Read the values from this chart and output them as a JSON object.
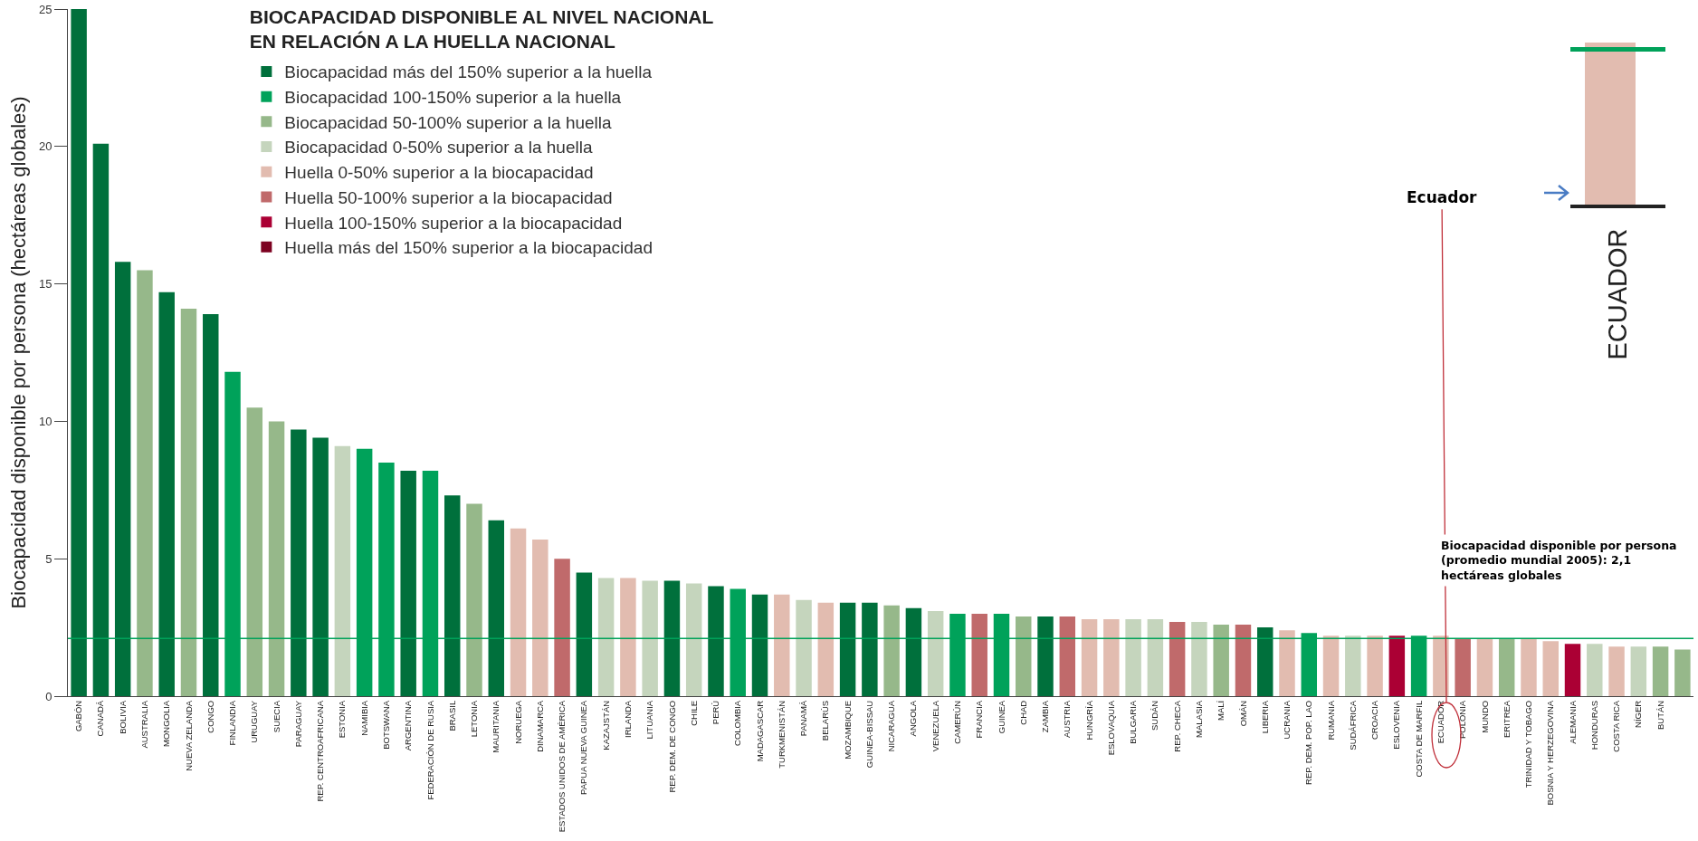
{
  "chart_data": {
    "type": "bar",
    "title": "BIOCAPACIDAD DISPONIBLE AL NIVEL NACIONAL EN RELACIÓN A LA HUELLA NACIONAL",
    "ylabel": "Biocapacidad disponible por persona (hectáreas globales)",
    "categories": [
      "GABÓN",
      "CANADÁ",
      "BOLIVIA",
      "AUSTRALIA",
      "MONGOLIA",
      "NUEVA ZELANDA",
      "CONGO",
      "FINLANDIA",
      "URUGUAY",
      "SUECIA",
      "PARAGUAY",
      "REP. CENTROAFRICANA",
      "ESTONIA",
      "NAMIBIA",
      "BOTSWANA",
      "ARGENTINA",
      "FEDERACIÓN DE RUSIA",
      "BRASIL",
      "LETONIA",
      "MAURITANIA",
      "NORUEGA",
      "DINAMARCA",
      "ESTADOS UNIDOS DE AMÉRICA",
      "PAPUA NUEVA GUINEA",
      "KAZAJSTÁN",
      "IRLANDA",
      "LITUANIA",
      "REP. DEM. DE CONGO",
      "CHILE",
      "PERÚ",
      "COLOMBIA",
      "MADAGASCAR",
      "TURKMENISTÁN",
      "PANAMÁ",
      "BELARÚS",
      "MOZAMBIQUE",
      "GUINEA-BISSAU",
      "NICARAGUA",
      "ANGOLA",
      "VENEZUELA",
      "CAMERÚN",
      "FRANCIA",
      "GUINEA",
      "CHAD",
      "ZAMBIA",
      "AUSTRIA",
      "HUNGRÍA",
      "ESLOVAQUIA",
      "BULGARIA",
      "SUDÁN",
      "REP. CHECA",
      "MALASIA",
      "MALÍ",
      "OMÁN",
      "LIBERIA",
      "UCRANIA",
      "REP. DEM. POP. LAO",
      "RUMANIA",
      "SUDÁFRICA",
      "CROACIA",
      "ESLOVENIA",
      "COSTA DE MARFIL",
      "ECUADOR",
      "POLONIA",
      "MUNDO",
      "ERITREA",
      "TRINIDAD Y TOBAGO",
      "BOSNIA Y HERZEGOVINA",
      "ALEMANIA",
      "HONDURAS",
      "COSTA RICA",
      "NÍGER",
      "BUTÁN",
      null
    ],
    "series": [
      {
        "name": "Biocapacidad más del 150% superior a la huella",
        "color": "#00703c",
        "values": [
          25.0,
          20.1,
          15.8,
          null,
          14.7,
          null,
          13.9,
          null,
          null,
          null,
          9.7,
          9.4,
          null,
          null,
          null,
          8.2,
          null,
          7.3,
          null,
          6.4,
          null,
          null,
          null,
          4.5,
          null,
          null,
          null,
          4.2,
          null,
          4.0,
          null,
          3.7,
          null,
          null,
          null,
          3.4,
          3.4,
          null,
          3.2,
          null,
          null,
          null,
          null,
          null,
          2.9,
          null,
          null,
          null,
          null,
          null,
          null,
          null,
          null,
          null,
          2.5,
          null,
          null,
          null,
          null,
          null,
          null,
          null,
          null,
          null,
          null,
          null,
          null,
          null,
          null,
          null,
          null,
          null,
          null,
          null
        ]
      },
      {
        "name": "Biocapacidad 100-150% superior a la huella",
        "color": "#00a25a",
        "values": [
          null,
          null,
          null,
          null,
          null,
          null,
          null,
          11.8,
          null,
          null,
          null,
          null,
          null,
          9.0,
          8.5,
          null,
          8.2,
          null,
          null,
          null,
          null,
          null,
          null,
          null,
          null,
          null,
          null,
          null,
          null,
          null,
          3.9,
          null,
          null,
          null,
          null,
          null,
          null,
          null,
          null,
          null,
          3.0,
          null,
          3.0,
          null,
          null,
          null,
          null,
          null,
          null,
          null,
          null,
          null,
          null,
          null,
          null,
          null,
          2.3,
          null,
          null,
          null,
          null,
          2.2,
          null,
          null,
          null,
          null,
          null,
          null,
          null,
          null,
          null,
          null,
          null,
          null
        ]
      },
      {
        "name": "Biocapacidad 50-100% superior a la huella",
        "color": "#96b88a",
        "values": [
          null,
          null,
          null,
          15.5,
          null,
          14.1,
          null,
          null,
          10.5,
          10.0,
          null,
          null,
          null,
          null,
          null,
          null,
          null,
          null,
          7.0,
          null,
          null,
          null,
          null,
          null,
          null,
          null,
          null,
          null,
          null,
          null,
          null,
          null,
          null,
          null,
          null,
          null,
          null,
          3.3,
          null,
          null,
          null,
          null,
          null,
          2.9,
          null,
          null,
          null,
          null,
          null,
          null,
          null,
          null,
          2.6,
          null,
          null,
          null,
          null,
          null,
          null,
          null,
          null,
          null,
          null,
          null,
          null,
          2.1,
          null,
          null,
          null,
          null,
          null,
          null,
          1.8,
          1.7
        ]
      },
      {
        "name": "Biocapacidad 0-50% superior a la huella",
        "color": "#c5d5bd",
        "values": [
          null,
          null,
          null,
          null,
          null,
          null,
          null,
          null,
          null,
          null,
          null,
          null,
          9.1,
          null,
          null,
          null,
          null,
          null,
          null,
          null,
          null,
          null,
          null,
          null,
          4.3,
          null,
          4.2,
          null,
          4.1,
          null,
          null,
          null,
          null,
          3.5,
          null,
          null,
          null,
          null,
          null,
          3.1,
          null,
          null,
          null,
          null,
          null,
          null,
          null,
          null,
          2.8,
          2.8,
          null,
          2.7,
          null,
          null,
          null,
          null,
          null,
          null,
          2.2,
          null,
          null,
          null,
          null,
          null,
          null,
          null,
          null,
          null,
          null,
          1.9,
          null,
          1.8,
          null,
          null
        ]
      },
      {
        "name": "Huella 0-50% superior a la biocapacidad",
        "color": "#e2bcb0",
        "values": [
          null,
          null,
          null,
          null,
          null,
          null,
          null,
          null,
          null,
          null,
          null,
          null,
          null,
          null,
          null,
          null,
          null,
          null,
          null,
          null,
          6.1,
          5.7,
          null,
          null,
          null,
          4.3,
          null,
          null,
          null,
          null,
          null,
          null,
          3.7,
          null,
          3.4,
          null,
          null,
          null,
          null,
          null,
          null,
          null,
          null,
          null,
          null,
          null,
          2.8,
          2.8,
          null,
          null,
          null,
          null,
          null,
          null,
          null,
          2.4,
          null,
          2.2,
          null,
          2.2,
          null,
          null,
          2.2,
          null,
          2.1,
          null,
          2.1,
          2.0,
          null,
          null,
          1.8,
          null,
          null,
          null
        ]
      },
      {
        "name": "Huella 50-100% superior a la biocapacidad",
        "color": "#c06a6b",
        "values": [
          null,
          null,
          null,
          null,
          null,
          null,
          null,
          null,
          null,
          null,
          null,
          null,
          null,
          null,
          null,
          null,
          null,
          null,
          null,
          null,
          null,
          null,
          5.0,
          null,
          null,
          null,
          null,
          null,
          null,
          null,
          null,
          null,
          null,
          null,
          null,
          null,
          null,
          null,
          null,
          null,
          null,
          3.0,
          null,
          null,
          null,
          2.9,
          null,
          null,
          null,
          null,
          2.7,
          null,
          null,
          2.6,
          null,
          null,
          null,
          null,
          null,
          null,
          null,
          null,
          null,
          2.1,
          null,
          null,
          null,
          null,
          null,
          null,
          null,
          null,
          null,
          null
        ]
      },
      {
        "name": "Huella 100-150% superior a la biocapacidad",
        "color": "#ab0034",
        "values": [
          null,
          null,
          null,
          null,
          null,
          null,
          null,
          null,
          null,
          null,
          null,
          null,
          null,
          null,
          null,
          null,
          null,
          null,
          null,
          null,
          null,
          null,
          null,
          null,
          null,
          null,
          null,
          null,
          null,
          null,
          null,
          null,
          null,
          null,
          null,
          null,
          null,
          null,
          null,
          null,
          null,
          null,
          null,
          null,
          null,
          null,
          null,
          null,
          null,
          null,
          null,
          null,
          null,
          null,
          null,
          null,
          null,
          null,
          null,
          null,
          2.2,
          null,
          null,
          null,
          null,
          null,
          null,
          null,
          1.9,
          null,
          null,
          null,
          null,
          null
        ]
      },
      {
        "name": "Huella más del 150% superior a la biocapacidad",
        "color": "#7c0020",
        "values": [
          null,
          null,
          null,
          null,
          null,
          null,
          null,
          null,
          null,
          null,
          null,
          null,
          null,
          null,
          null,
          null,
          null,
          null,
          null,
          null,
          null,
          null,
          null,
          null,
          null,
          null,
          null,
          null,
          null,
          null,
          null,
          null,
          null,
          null,
          null,
          null,
          null,
          null,
          null,
          null,
          null,
          null,
          null,
          null,
          null,
          null,
          null,
          null,
          null,
          null,
          null,
          null,
          null,
          null,
          null,
          null,
          null,
          null,
          null,
          null,
          null,
          null,
          null,
          null,
          null,
          null,
          null,
          null,
          null,
          null,
          null,
          null,
          null,
          null
        ]
      }
    ],
    "ylim": [
      0,
      25
    ],
    "yticks": [
      0,
      5,
      10,
      15,
      20,
      25
    ],
    "ref_lines": [
      {
        "axis": "y",
        "value": 2.1,
        "color": "#00a25a"
      }
    ],
    "annotations": [
      "Biocapacidad disponible por persona (promedio mundial 2005): 2,1 hectáreas globales",
      "Ecuador",
      "ECUADOR"
    ],
    "legend": "top left"
  }
}
